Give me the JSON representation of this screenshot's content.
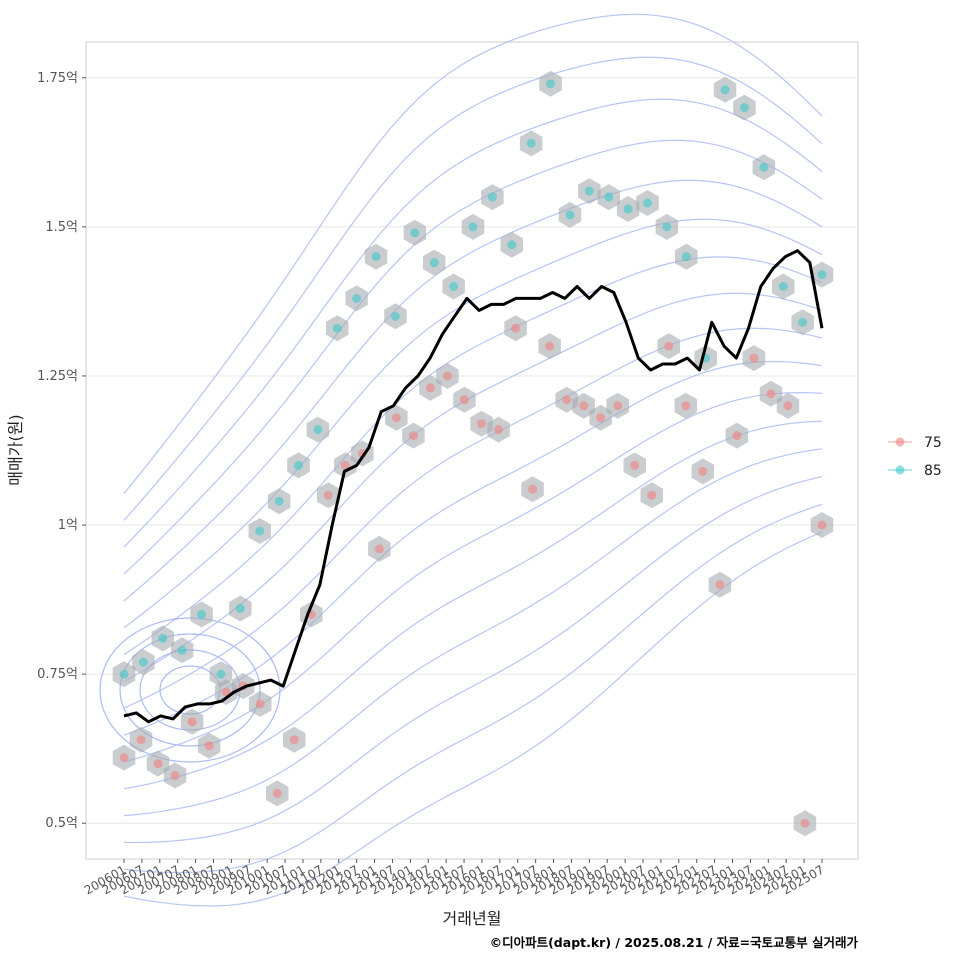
{
  "chart_data": {
    "type": "line",
    "xlabel": "거래년월",
    "ylabel": "매매가(원)",
    "caption": "©디아파트(dapt.kr) / 2025.08.21 / 자료=국토교통부 실거래가",
    "y_ticks": [
      {
        "value": 0.5,
        "label": "0.5억"
      },
      {
        "value": 0.75,
        "label": "0.75억"
      },
      {
        "value": 1.0,
        "label": "1억"
      },
      {
        "value": 1.25,
        "label": "1.25억"
      },
      {
        "value": 1.5,
        "label": "1.5억"
      },
      {
        "value": 1.75,
        "label": "1.75억"
      }
    ],
    "x_tick_labels": [
      "200601",
      "200607",
      "200701",
      "200707",
      "200801",
      "200807",
      "200901",
      "200907",
      "201001",
      "201007",
      "201101",
      "201107",
      "201201",
      "201207",
      "201301",
      "201307",
      "201401",
      "201407",
      "201501",
      "201507",
      "201601",
      "201607",
      "201701",
      "201707",
      "201801",
      "201807",
      "201901",
      "201907",
      "202001",
      "202007",
      "202101",
      "202107",
      "202201",
      "202207",
      "202301",
      "202307",
      "202401",
      "202407",
      "202501",
      "202507"
    ],
    "ylim": [
      0.44,
      1.81
    ],
    "grid": true,
    "legend_position": "right",
    "legend": [
      {
        "name": "75",
        "color": "#f08080"
      },
      {
        "name": "85",
        "color": "#3cc8c8"
      }
    ],
    "series": [
      {
        "kind": "line",
        "points": [
          [
            0,
            0.68
          ],
          [
            1,
            0.685
          ],
          [
            2,
            0.67
          ],
          [
            3,
            0.68
          ],
          [
            4,
            0.675
          ],
          [
            5,
            0.695
          ],
          [
            6,
            0.7
          ],
          [
            7,
            0.7
          ],
          [
            8,
            0.705
          ],
          [
            9,
            0.72
          ],
          [
            10,
            0.73
          ],
          [
            11,
            0.735
          ],
          [
            12,
            0.74
          ],
          [
            13,
            0.73
          ],
          [
            14,
            0.79
          ],
          [
            15,
            0.85
          ],
          [
            16,
            0.9
          ],
          [
            17,
            1.0
          ],
          [
            18,
            1.09
          ],
          [
            19,
            1.1
          ],
          [
            20,
            1.13
          ],
          [
            21,
            1.19
          ],
          [
            22,
            1.2
          ],
          [
            23,
            1.23
          ],
          [
            24,
            1.25
          ],
          [
            25,
            1.28
          ],
          [
            26,
            1.32
          ],
          [
            27,
            1.35
          ],
          [
            28,
            1.38
          ],
          [
            29,
            1.36
          ],
          [
            30,
            1.37
          ],
          [
            31,
            1.37
          ],
          [
            32,
            1.38
          ],
          [
            33,
            1.38
          ],
          [
            34,
            1.38
          ],
          [
            35,
            1.39
          ],
          [
            36,
            1.38
          ],
          [
            37,
            1.4
          ],
          [
            38,
            1.38
          ],
          [
            39,
            1.4
          ],
          [
            40,
            1.39
          ],
          [
            41,
            1.34
          ],
          [
            42,
            1.28
          ],
          [
            43,
            1.26
          ],
          [
            44,
            1.27
          ],
          [
            45,
            1.27
          ],
          [
            46,
            1.28
          ],
          [
            47,
            1.26
          ],
          [
            48,
            1.34
          ],
          [
            49,
            1.3
          ],
          [
            50,
            1.28
          ],
          [
            51,
            1.33
          ],
          [
            52,
            1.4
          ],
          [
            53,
            1.43
          ],
          [
            54,
            1.45
          ],
          [
            55,
            1.46
          ],
          [
            56,
            1.44
          ],
          [
            57,
            1.33
          ]
        ]
      },
      {
        "kind": "points",
        "name": "75",
        "color": "#f08080",
        "points": [
          [
            0,
            0.61
          ],
          [
            1,
            0.64
          ],
          [
            2,
            0.6
          ],
          [
            3,
            0.58
          ],
          [
            4,
            0.67
          ],
          [
            5,
            0.63
          ],
          [
            6,
            0.72
          ],
          [
            7,
            0.73
          ],
          [
            8,
            0.7
          ],
          [
            9,
            0.55
          ],
          [
            10,
            0.64
          ],
          [
            11,
            0.85
          ],
          [
            12,
            1.05
          ],
          [
            13,
            1.1
          ],
          [
            14,
            1.12
          ],
          [
            15,
            0.96
          ],
          [
            16,
            1.18
          ],
          [
            17,
            1.15
          ],
          [
            18,
            1.23
          ],
          [
            19,
            1.25
          ],
          [
            20,
            1.21
          ],
          [
            21,
            1.17
          ],
          [
            22,
            1.16
          ],
          [
            23,
            1.33
          ],
          [
            24,
            1.06
          ],
          [
            25,
            1.3
          ],
          [
            26,
            1.21
          ],
          [
            27,
            1.2
          ],
          [
            28,
            1.18
          ],
          [
            29,
            1.2
          ],
          [
            30,
            1.1
          ],
          [
            31,
            1.05
          ],
          [
            32,
            1.3
          ],
          [
            33,
            1.2
          ],
          [
            34,
            1.09
          ],
          [
            35,
            0.9
          ],
          [
            36,
            1.15
          ],
          [
            37,
            1.28
          ],
          [
            38,
            1.22
          ],
          [
            39,
            1.2
          ],
          [
            40,
            0.5
          ],
          [
            41,
            1.0
          ]
        ]
      },
      {
        "kind": "points",
        "name": "85",
        "color": "#3cc8c8",
        "points": [
          [
            0,
            0.75
          ],
          [
            1,
            0.77
          ],
          [
            2,
            0.81
          ],
          [
            3,
            0.79
          ],
          [
            4,
            0.85
          ],
          [
            5,
            0.75
          ],
          [
            6,
            0.86
          ],
          [
            7,
            0.99
          ],
          [
            8,
            1.04
          ],
          [
            9,
            1.1
          ],
          [
            10,
            1.16
          ],
          [
            11,
            1.33
          ],
          [
            12,
            1.38
          ],
          [
            13,
            1.45
          ],
          [
            14,
            1.35
          ],
          [
            15,
            1.49
          ],
          [
            16,
            1.44
          ],
          [
            17,
            1.4
          ],
          [
            18,
            1.5
          ],
          [
            19,
            1.55
          ],
          [
            20,
            1.47
          ],
          [
            21,
            1.64
          ],
          [
            22,
            1.74
          ],
          [
            23,
            1.52
          ],
          [
            24,
            1.56
          ],
          [
            25,
            1.55
          ],
          [
            26,
            1.53
          ],
          [
            27,
            1.54
          ],
          [
            28,
            1.5
          ],
          [
            29,
            1.45
          ],
          [
            30,
            1.28
          ],
          [
            31,
            1.73
          ],
          [
            32,
            1.7
          ],
          [
            33,
            1.6
          ],
          [
            34,
            1.4
          ],
          [
            35,
            1.34
          ],
          [
            36,
            1.42
          ]
        ]
      }
    ],
    "density_contours": true,
    "hex_bins": true
  }
}
